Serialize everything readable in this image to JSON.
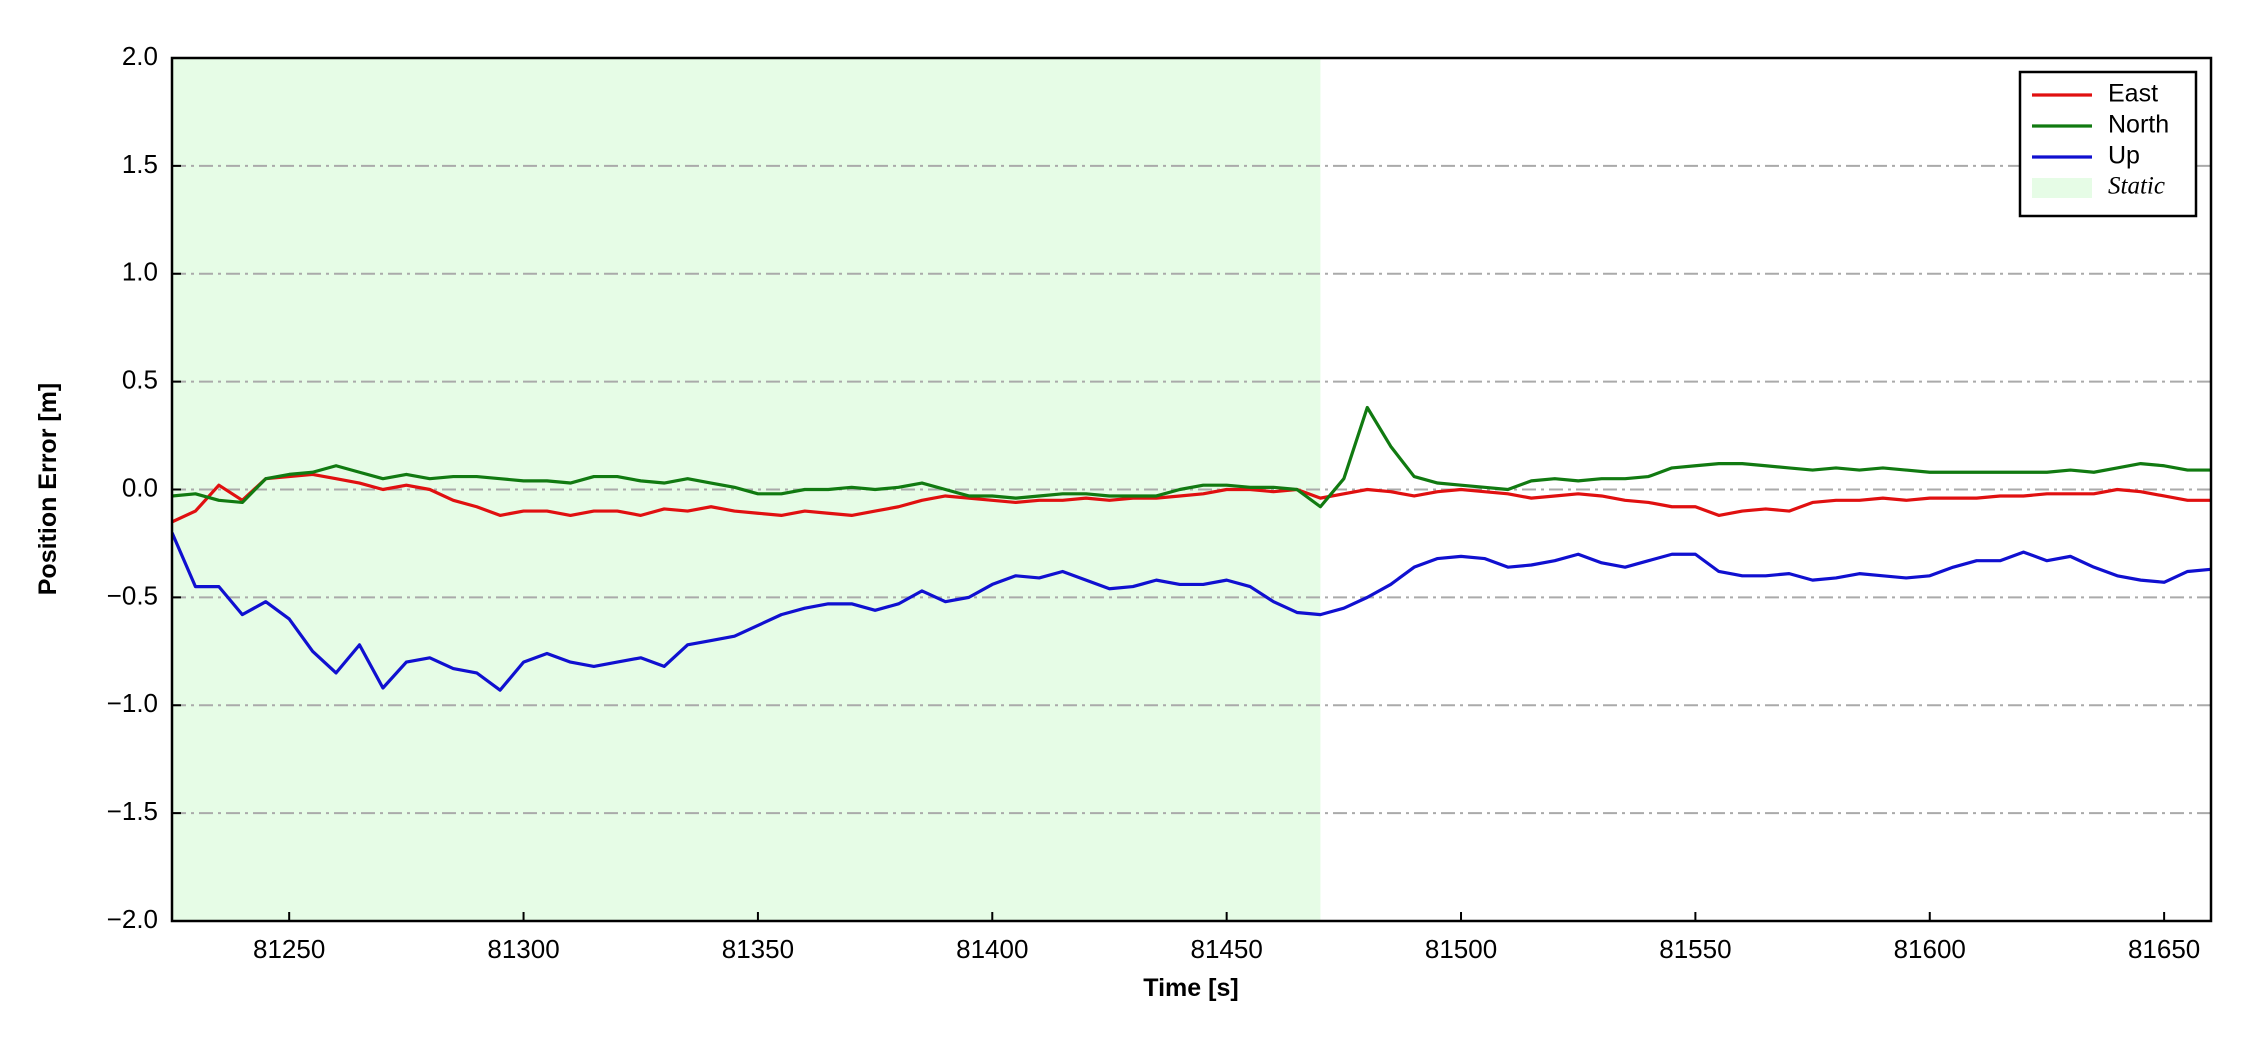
{
  "chart_data": {
    "type": "line",
    "xlabel": "Time [s]",
    "ylabel": "Position Error [m]",
    "xlim": [
      81225,
      81660
    ],
    "ylim": [
      -2,
      2
    ],
    "xticks": [
      81250,
      81300,
      81350,
      81400,
      81450,
      81500,
      81550,
      81600,
      81650
    ],
    "yticks": [
      {
        "value": -2,
        "label": "−2.0"
      },
      {
        "value": -1.5,
        "label": "−1.5"
      },
      {
        "value": -1,
        "label": "−1.0"
      },
      {
        "value": -0.5,
        "label": "−0.5"
      },
      {
        "value": 0,
        "label": "0.0"
      },
      {
        "value": 0.5,
        "label": "0.5"
      },
      {
        "value": 1,
        "label": "1.0"
      },
      {
        "value": 1.5,
        "label": "1.5"
      },
      {
        "value": 2,
        "label": "2.0"
      }
    ],
    "grid": "y",
    "legend": "upper right",
    "shaded_region": {
      "name": "Static",
      "xmin": 81225,
      "xmax": 81470,
      "color": "#e6fce6"
    },
    "x": [
      81225,
      81230,
      81235,
      81240,
      81245,
      81250,
      81255,
      81260,
      81265,
      81270,
      81275,
      81280,
      81285,
      81290,
      81295,
      81300,
      81305,
      81310,
      81315,
      81320,
      81325,
      81330,
      81335,
      81340,
      81345,
      81350,
      81355,
      81360,
      81365,
      81370,
      81375,
      81380,
      81385,
      81390,
      81395,
      81400,
      81405,
      81410,
      81415,
      81420,
      81425,
      81430,
      81435,
      81440,
      81445,
      81450,
      81455,
      81460,
      81465,
      81470,
      81475,
      81480,
      81485,
      81490,
      81495,
      81500,
      81505,
      81510,
      81515,
      81520,
      81525,
      81530,
      81535,
      81540,
      81545,
      81550,
      81555,
      81560,
      81565,
      81570,
      81575,
      81580,
      81585,
      81590,
      81595,
      81600,
      81605,
      81610,
      81615,
      81620,
      81625,
      81630,
      81635,
      81640,
      81645,
      81650,
      81655,
      81660
    ],
    "series": [
      {
        "name": "East",
        "color": "#e01010",
        "values": [
          -0.15,
          -0.1,
          0.02,
          -0.05,
          0.05,
          0.06,
          0.07,
          0.05,
          0.03,
          0.0,
          0.02,
          0.0,
          -0.05,
          -0.08,
          -0.12,
          -0.1,
          -0.1,
          -0.12,
          -0.1,
          -0.1,
          -0.12,
          -0.09,
          -0.1,
          -0.08,
          -0.1,
          -0.11,
          -0.12,
          -0.1,
          -0.11,
          -0.12,
          -0.1,
          -0.08,
          -0.05,
          -0.03,
          -0.04,
          -0.05,
          -0.06,
          -0.05,
          -0.05,
          -0.04,
          -0.05,
          -0.04,
          -0.04,
          -0.03,
          -0.02,
          0.0,
          0.0,
          -0.01,
          0.0,
          -0.04,
          -0.02,
          0.0,
          -0.01,
          -0.03,
          -0.01,
          0.0,
          -0.01,
          -0.02,
          -0.04,
          -0.03,
          -0.02,
          -0.03,
          -0.05,
          -0.06,
          -0.08,
          -0.08,
          -0.12,
          -0.1,
          -0.09,
          -0.1,
          -0.06,
          -0.05,
          -0.05,
          -0.04,
          -0.05,
          -0.04,
          -0.04,
          -0.04,
          -0.03,
          -0.03,
          -0.02,
          -0.02,
          -0.02,
          0.0,
          -0.01,
          -0.03,
          -0.05,
          -0.05
        ]
      },
      {
        "name": "North",
        "color": "#117a11",
        "values": [
          -0.03,
          -0.02,
          -0.05,
          -0.06,
          0.05,
          0.07,
          0.08,
          0.11,
          0.08,
          0.05,
          0.07,
          0.05,
          0.06,
          0.06,
          0.05,
          0.04,
          0.04,
          0.03,
          0.06,
          0.06,
          0.04,
          0.03,
          0.05,
          0.03,
          0.01,
          -0.02,
          -0.02,
          0.0,
          0.0,
          0.01,
          0.0,
          0.01,
          0.03,
          0.0,
          -0.03,
          -0.03,
          -0.04,
          -0.03,
          -0.02,
          -0.02,
          -0.03,
          -0.03,
          -0.03,
          0.0,
          0.02,
          0.02,
          0.01,
          0.01,
          0.0,
          -0.08,
          0.05,
          0.38,
          0.2,
          0.06,
          0.03,
          0.02,
          0.01,
          0.0,
          0.04,
          0.05,
          0.04,
          0.05,
          0.05,
          0.06,
          0.1,
          0.11,
          0.12,
          0.12,
          0.11,
          0.1,
          0.09,
          0.1,
          0.09,
          0.1,
          0.09,
          0.08,
          0.08,
          0.08,
          0.08,
          0.08,
          0.08,
          0.09,
          0.08,
          0.1,
          0.12,
          0.11,
          0.09,
          0.09
        ]
      },
      {
        "name": "Up",
        "color": "#1010d0",
        "values": [
          -0.2,
          -0.45,
          -0.45,
          -0.58,
          -0.52,
          -0.6,
          -0.75,
          -0.85,
          -0.72,
          -0.92,
          -0.8,
          -0.78,
          -0.83,
          -0.85,
          -0.93,
          -0.8,
          -0.76,
          -0.8,
          -0.82,
          -0.8,
          -0.78,
          -0.82,
          -0.72,
          -0.7,
          -0.68,
          -0.63,
          -0.58,
          -0.55,
          -0.53,
          -0.53,
          -0.56,
          -0.53,
          -0.47,
          -0.52,
          -0.5,
          -0.44,
          -0.4,
          -0.41,
          -0.38,
          -0.42,
          -0.46,
          -0.45,
          -0.42,
          -0.44,
          -0.44,
          -0.42,
          -0.45,
          -0.52,
          -0.57,
          -0.58,
          -0.55,
          -0.5,
          -0.44,
          -0.36,
          -0.32,
          -0.31,
          -0.32,
          -0.36,
          -0.35,
          -0.33,
          -0.3,
          -0.34,
          -0.36,
          -0.33,
          -0.3,
          -0.3,
          -0.38,
          -0.4,
          -0.4,
          -0.39,
          -0.42,
          -0.41,
          -0.39,
          -0.4,
          -0.41,
          -0.4,
          -0.36,
          -0.33,
          -0.33,
          -0.29,
          -0.33,
          -0.31,
          -0.36,
          -0.4,
          -0.42,
          -0.43,
          -0.38,
          -0.37
        ]
      }
    ]
  }
}
